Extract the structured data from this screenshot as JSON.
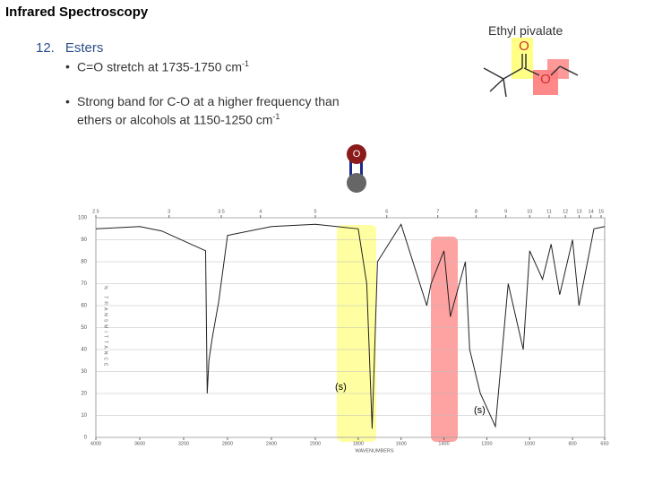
{
  "header": {
    "title": "Infrared Spectroscopy"
  },
  "section": {
    "number": "12.",
    "heading": "Esters"
  },
  "bullets": [
    {
      "lines": [
        "C=O stretch at 1735-1750 cm"
      ],
      "sup": "-1"
    },
    {
      "lines": [
        "Strong band for C-O at a higher frequency than",
        "ethers or  alcohols at 1150-1250 cm"
      ],
      "sup": "-1"
    }
  ],
  "molecule": {
    "name": "Ethyl pivalate",
    "atoms": [
      "O",
      "O"
    ]
  },
  "bond_icon": {
    "atom": "O"
  },
  "chart_data": {
    "type": "line",
    "xlabel": "WAVENUMBERS",
    "ylabel": "% TRANSMITTANCE",
    "x": [
      4000,
      3600,
      3400,
      3000,
      2985,
      2970,
      2940,
      2880,
      2800,
      2400,
      2000,
      1800,
      1760,
      1735,
      1710,
      1600,
      1480,
      1460,
      1400,
      1370,
      1300,
      1280,
      1230,
      1160,
      1100,
      1030,
      1000,
      940,
      900,
      860,
      800,
      770,
      700,
      650
    ],
    "values": [
      95,
      96,
      94,
      85,
      20,
      35,
      45,
      62,
      92,
      96,
      97,
      95,
      70,
      4,
      80,
      97,
      60,
      70,
      85,
      55,
      80,
      40,
      20,
      5,
      70,
      40,
      85,
      72,
      88,
      65,
      90,
      60,
      95,
      96
    ],
    "color": "#222222",
    "xlim": [
      4000,
      650
    ],
    "x_scale_break": 2000,
    "xticks": [
      4000,
      3600,
      3200,
      2800,
      2400,
      2000,
      1800,
      1600,
      1400,
      1200,
      1000,
      800,
      650
    ],
    "x2ticks": [
      2.5,
      3,
      3.5,
      4,
      5,
      6,
      7,
      8,
      9,
      10,
      11,
      12,
      13,
      14,
      15
    ],
    "ylim": [
      0,
      100
    ],
    "yticks": [
      0,
      10,
      20,
      30,
      40,
      50,
      60,
      70,
      80,
      90,
      100
    ],
    "grid": true,
    "annotations": [
      "(s)",
      "(s)"
    ]
  }
}
